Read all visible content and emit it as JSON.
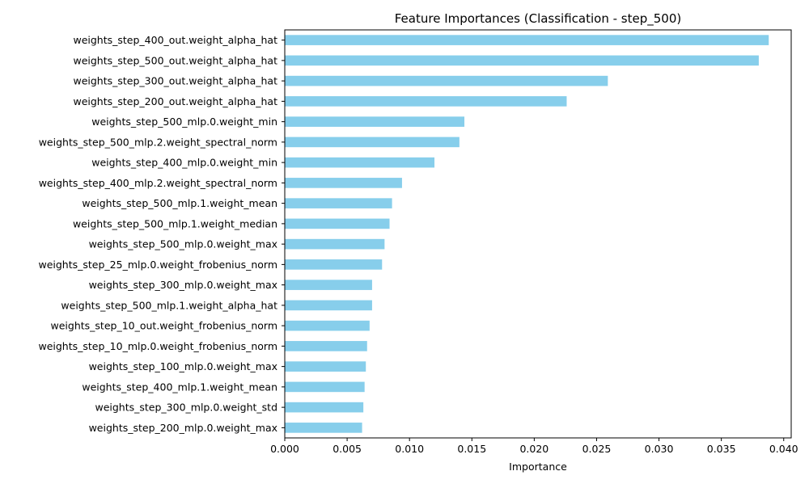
{
  "chart_data": {
    "type": "bar",
    "orientation": "horizontal",
    "title": "Feature Importances (Classification - step_500)",
    "xlabel": "Importance",
    "ylabel": "",
    "xlim": [
      0,
      0.0406
    ],
    "xticks": [
      0.0,
      0.005,
      0.01,
      0.015,
      0.02,
      0.025,
      0.03,
      0.035,
      0.04
    ],
    "xtick_labels": [
      "0.000",
      "0.005",
      "0.010",
      "0.015",
      "0.020",
      "0.025",
      "0.030",
      "0.035",
      "0.040"
    ],
    "grid": false,
    "bar_color": "#87ceeb",
    "categories": [
      "weights_step_400_out.weight_alpha_hat",
      "weights_step_500_out.weight_alpha_hat",
      "weights_step_300_out.weight_alpha_hat",
      "weights_step_200_out.weight_alpha_hat",
      "weights_step_500_mlp.0.weight_min",
      "weights_step_500_mlp.2.weight_spectral_norm",
      "weights_step_400_mlp.0.weight_min",
      "weights_step_400_mlp.2.weight_spectral_norm",
      "weights_step_500_mlp.1.weight_mean",
      "weights_step_500_mlp.1.weight_median",
      "weights_step_500_mlp.0.weight_max",
      "weights_step_25_mlp.0.weight_frobenius_norm",
      "weights_step_300_mlp.0.weight_max",
      "weights_step_500_mlp.1.weight_alpha_hat",
      "weights_step_10_out.weight_frobenius_norm",
      "weights_step_10_mlp.0.weight_frobenius_norm",
      "weights_step_100_mlp.0.weight_max",
      "weights_step_400_mlp.1.weight_mean",
      "weights_step_300_mlp.0.weight_std",
      "weights_step_200_mlp.0.weight_max"
    ],
    "values": [
      0.0388,
      0.038,
      0.0259,
      0.0226,
      0.0144,
      0.014,
      0.012,
      0.0094,
      0.0086,
      0.0084,
      0.008,
      0.0078,
      0.007,
      0.007,
      0.0068,
      0.0066,
      0.0065,
      0.0064,
      0.0063,
      0.0062
    ]
  }
}
